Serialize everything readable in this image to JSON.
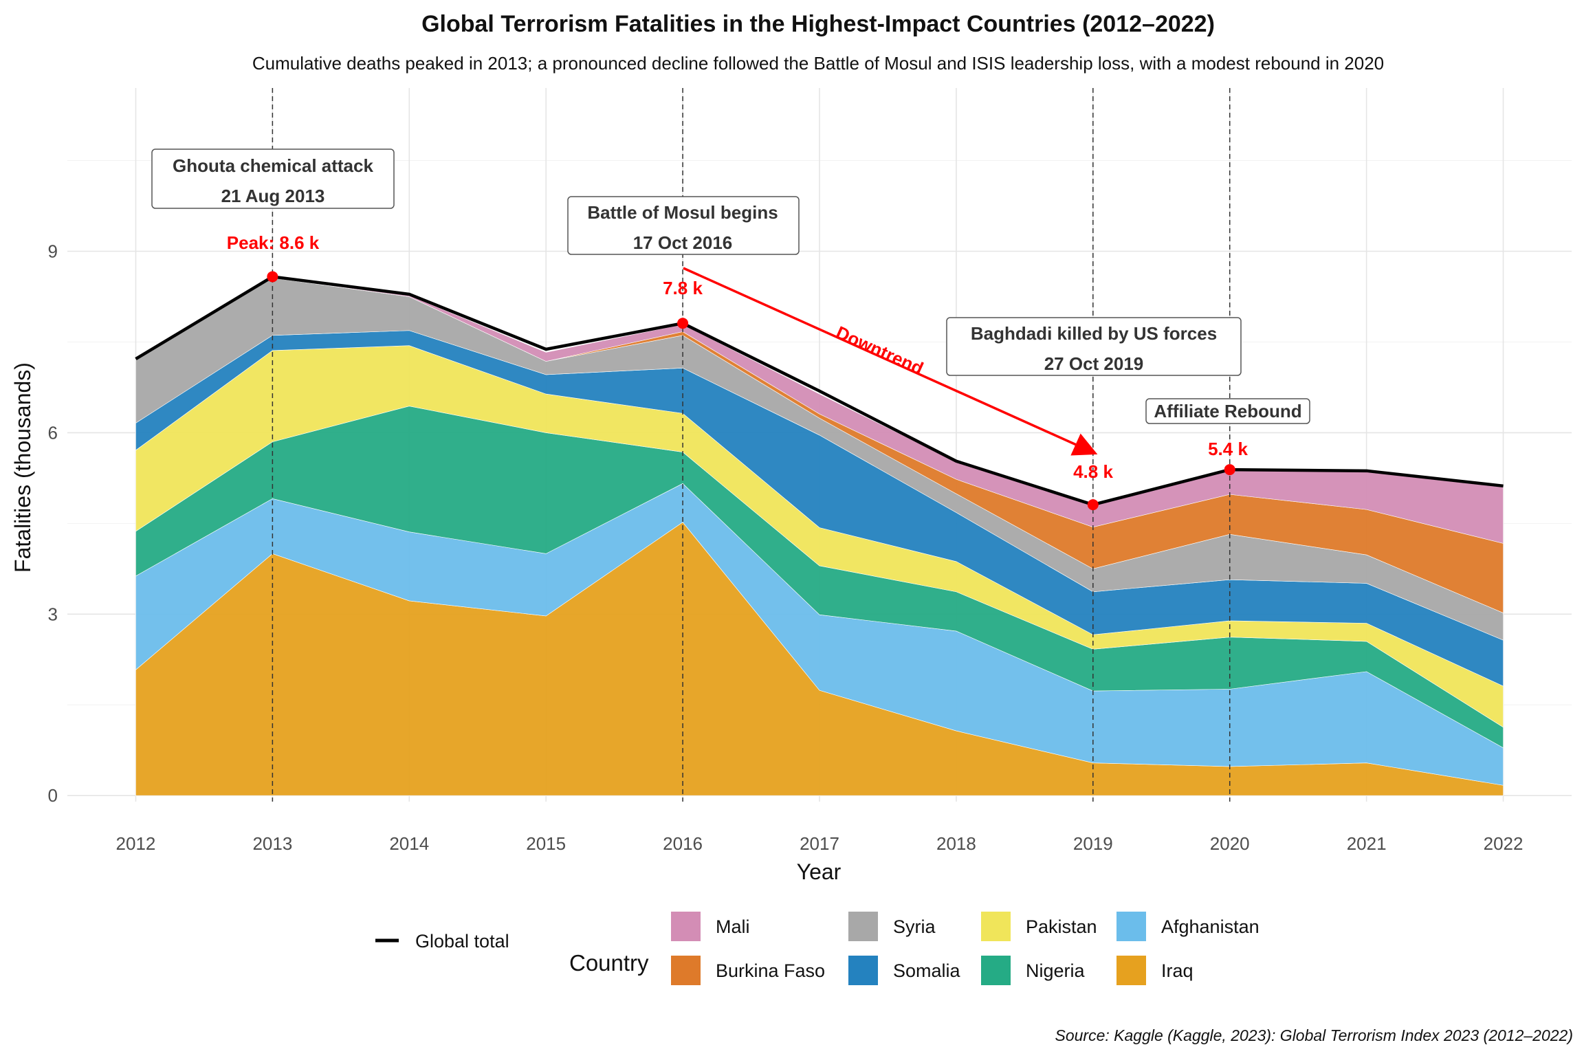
{
  "chart_data": {
    "type": "area",
    "title": "Global Terrorism Fatalities in the Highest-Impact Countries (2012–2022)",
    "subtitle": "Cumulative deaths peaked in 2013; a pronounced decline followed the Battle of Mosul and ISIS leadership loss, with a modest rebound in 2020",
    "xlabel": "Year",
    "ylabel": "Fatalities (thousands)",
    "caption": "Source: Kaggle (Kaggle, 2023): Global Terrorism Index 2023 (2012–2022)",
    "x": [
      2012,
      2013,
      2014,
      2015,
      2016,
      2017,
      2018,
      2019,
      2020,
      2021,
      2022
    ],
    "ylim": [
      -0.1,
      11.7
    ],
    "yticks": [
      0,
      3,
      6,
      9
    ],
    "grid": true,
    "legend_position": "bottom",
    "legend_title": "Country",
    "series": [
      {
        "name": "Iraq",
        "color": "#E6A11F",
        "values": [
          2.08,
          4.0,
          3.22,
          2.97,
          4.52,
          1.74,
          1.07,
          0.54,
          0.48,
          0.54,
          0.17
        ]
      },
      {
        "name": "Afghanistan",
        "color": "#6BBDEB",
        "values": [
          1.55,
          0.91,
          1.14,
          1.03,
          0.64,
          1.25,
          1.65,
          1.19,
          1.28,
          1.51,
          0.62
        ]
      },
      {
        "name": "Nigeria",
        "color": "#25AB85",
        "values": [
          0.74,
          0.94,
          2.08,
          2.0,
          0.52,
          0.81,
          0.65,
          0.69,
          0.86,
          0.5,
          0.34
        ]
      },
      {
        "name": "Pakistan",
        "color": "#F0E55A",
        "values": [
          1.34,
          1.51,
          1.0,
          0.64,
          0.64,
          0.63,
          0.5,
          0.24,
          0.27,
          0.3,
          0.68
        ]
      },
      {
        "name": "Somalia",
        "color": "#2482BF",
        "values": [
          0.45,
          0.25,
          0.25,
          0.32,
          0.75,
          1.53,
          0.81,
          0.71,
          0.68,
          0.66,
          0.76
        ]
      },
      {
        "name": "Syria",
        "color": "#A8A8A8",
        "values": [
          1.04,
          0.95,
          0.56,
          0.22,
          0.54,
          0.28,
          0.31,
          0.38,
          0.75,
          0.47,
          0.45
        ]
      },
      {
        "name": "Burkina Faso",
        "color": "#DE7A2A",
        "values": [
          0.0,
          0.0,
          0.0,
          0.0,
          0.06,
          0.07,
          0.24,
          0.69,
          0.66,
          0.75,
          1.15
        ]
      },
      {
        "name": "Mali",
        "color": "#D38DB5",
        "values": [
          0.0,
          0.0,
          0.02,
          0.15,
          0.12,
          0.33,
          0.29,
          0.35,
          0.4,
          0.62,
          0.93
        ]
      }
    ],
    "global_total": {
      "name": "Global total",
      "color": "#000000",
      "values": [
        7.22,
        8.58,
        8.29,
        7.38,
        7.81,
        6.69,
        5.53,
        4.81,
        5.39,
        5.37,
        5.12
      ]
    },
    "event_lines": [
      2013,
      2016,
      2019,
      2020
    ],
    "annotations": {
      "ghouta": {
        "line1": "Ghouta chemical attack",
        "line2": "21 Aug 2013",
        "year": 2013
      },
      "mosul": {
        "line1": "Battle of Mosul begins",
        "line2": "17 Oct 2016",
        "year": 2016
      },
      "baghdadi": {
        "line1": "Baghdadi killed by US forces",
        "line2": "27 Oct 2019",
        "year": 2019
      },
      "rebound": {
        "line1": "Affiliate Rebound",
        "year": 2020
      },
      "downtrend": "Downtrend",
      "peak_label": "Peak: 8.6 k",
      "mosul_value": "7.8 k",
      "baghdadi_value": "4.8 k",
      "rebound_value": "5.4 k"
    },
    "highlight_points": [
      {
        "year": 2013,
        "value": 8.58
      },
      {
        "year": 2016,
        "value": 7.81
      },
      {
        "year": 2019,
        "value": 4.81
      },
      {
        "year": 2020,
        "value": 5.39
      }
    ],
    "legend": {
      "total_label": "Global total",
      "title": "Country",
      "items": [
        "Mali",
        "Burkina Faso",
        "Syria",
        "Somalia",
        "Pakistan",
        "Nigeria",
        "Afghanistan",
        "Iraq"
      ]
    }
  }
}
